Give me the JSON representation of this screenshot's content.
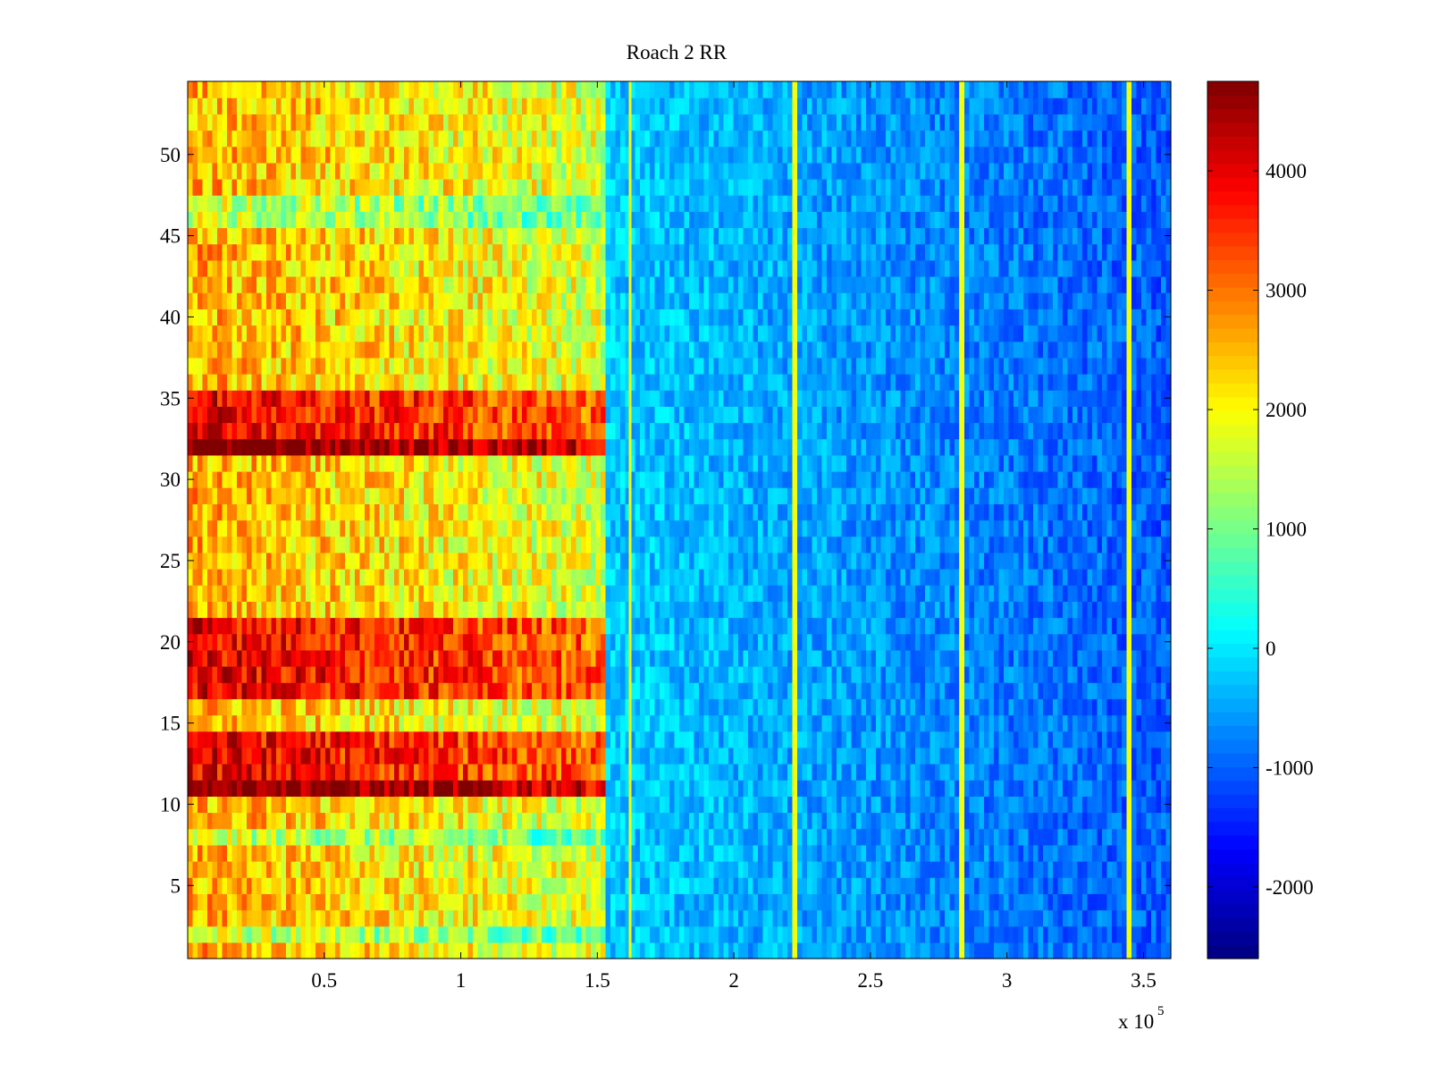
{
  "chart_data": {
    "type": "heatmap",
    "title": "Roach 2 RR",
    "xlabel": "",
    "ylabel": "",
    "x_exponent_label": {
      "base": "x 10",
      "exponent": "5"
    },
    "xlim": [
      0,
      3.6
    ],
    "ylim": [
      0.5,
      54.5
    ],
    "x_ticks": [
      0.5,
      1,
      1.5,
      2,
      2.5,
      3,
      3.5
    ],
    "x_tick_labels": [
      "0.5",
      "1",
      "1.5",
      "2",
      "2.5",
      "3",
      "3.5"
    ],
    "y_ticks": [
      5,
      10,
      15,
      20,
      25,
      30,
      35,
      40,
      45,
      50
    ],
    "y_tick_labels": [
      "5",
      "10",
      "15",
      "20",
      "25",
      "30",
      "35",
      "40",
      "45",
      "50"
    ],
    "rows": 54,
    "colormap": "jet",
    "clim": [
      -2600,
      4750
    ],
    "colorbar": {
      "ticks": [
        4000,
        3000,
        2000,
        1000,
        0,
        -1000,
        -2000
      ],
      "tick_labels": [
        "4000",
        "3000",
        "2000",
        "1000",
        "0",
        "-1000",
        "-2000"
      ]
    },
    "transition_x": 1.53,
    "left_region_base_level": 2600,
    "right_region_base_level": -200,
    "bright_columns_x": [
      1.62,
      2.22,
      2.83,
      3.45
    ],
    "hot_rows": [
      11,
      17,
      18,
      19,
      20,
      21,
      12,
      13,
      14,
      32,
      33,
      34,
      35
    ],
    "very_hot_rows": [
      11,
      32
    ],
    "cool_rows_left": [
      2,
      8,
      46,
      47
    ],
    "grid": false,
    "legend": "none"
  }
}
